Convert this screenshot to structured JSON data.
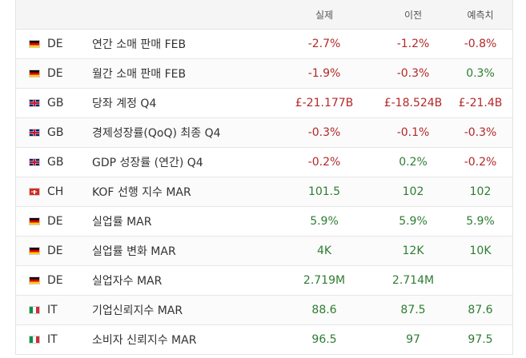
{
  "header": {
    "actual_label": "실제",
    "previous_label": "이전",
    "forecast_label": "예측치"
  },
  "colors": {
    "negative": "#b42828",
    "positive": "#2e7d32"
  },
  "rows": [
    {
      "flag": "germany-flag-icon",
      "country": "DE",
      "event": "연간 소매 판매  FEB",
      "actual": "-2.7%",
      "previous": "-1.2%",
      "forecast": "-0.8%",
      "actual_tone": "neg",
      "previous_tone": "neg",
      "forecast_tone": "neg"
    },
    {
      "flag": "germany-flag-icon",
      "country": "DE",
      "event": "월간 소매 판매  FEB",
      "actual": "-1.9%",
      "previous": "-0.3%",
      "forecast": "0.3%",
      "actual_tone": "neg",
      "previous_tone": "neg",
      "forecast_tone": "pos"
    },
    {
      "flag": "uk-flag-icon",
      "country": "GB",
      "event": "당좌 계정  Q4",
      "actual": "£-21.177B",
      "previous": "£-18.524B",
      "forecast": "£-21.4B",
      "actual_tone": "neg",
      "previous_tone": "neg",
      "forecast_tone": "neg"
    },
    {
      "flag": "uk-flag-icon",
      "country": "GB",
      "event": "경제성장률(QoQ) 최종  Q4",
      "actual": "-0.3%",
      "previous": "-0.1%",
      "forecast": "-0.3%",
      "actual_tone": "neg",
      "previous_tone": "neg",
      "forecast_tone": "neg"
    },
    {
      "flag": "uk-flag-icon",
      "country": "GB",
      "event": "GDP 성장률 (연간)  Q4",
      "actual": "-0.2%",
      "previous": "0.2%",
      "forecast": "-0.2%",
      "actual_tone": "neg",
      "previous_tone": "pos",
      "forecast_tone": "neg"
    },
    {
      "flag": "switzerland-flag-icon",
      "country": "CH",
      "event": "KOF 선행 지수  MAR",
      "actual": "101.5",
      "previous": "102",
      "forecast": "102",
      "actual_tone": "pos",
      "previous_tone": "pos",
      "forecast_tone": "pos"
    },
    {
      "flag": "germany-flag-icon",
      "country": "DE",
      "event": "실업률  MAR",
      "actual": "5.9%",
      "previous": "5.9%",
      "forecast": "5.9%",
      "actual_tone": "pos",
      "previous_tone": "pos",
      "forecast_tone": "pos"
    },
    {
      "flag": "germany-flag-icon",
      "country": "DE",
      "event": "실업률 변화  MAR",
      "actual": "4K",
      "previous": "12K",
      "forecast": "10K",
      "actual_tone": "pos",
      "previous_tone": "pos",
      "forecast_tone": "pos"
    },
    {
      "flag": "germany-flag-icon",
      "country": "DE",
      "event": "실업자수  MAR",
      "actual": "2.719M",
      "previous": "2.714M",
      "forecast": "",
      "actual_tone": "pos",
      "previous_tone": "pos",
      "forecast_tone": "neu"
    },
    {
      "flag": "italy-flag-icon",
      "country": "IT",
      "event": "기업신뢰지수  MAR",
      "actual": "88.6",
      "previous": "87.5",
      "forecast": "87.6",
      "actual_tone": "pos",
      "previous_tone": "pos",
      "forecast_tone": "pos"
    },
    {
      "flag": "italy-flag-icon",
      "country": "IT",
      "event": "소비자 신뢰지수  MAR",
      "actual": "96.5",
      "previous": "97",
      "forecast": "97.5",
      "actual_tone": "pos",
      "previous_tone": "pos",
      "forecast_tone": "pos"
    }
  ]
}
